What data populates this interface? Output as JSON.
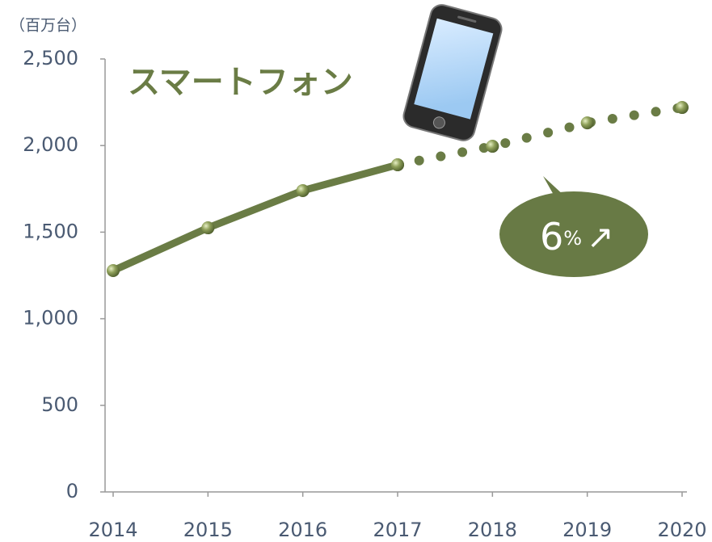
{
  "chart_data": {
    "type": "line",
    "unit_label": "（百万台）",
    "annotation": "スマートフォン",
    "growth": {
      "value": 6,
      "unit": "%",
      "arrow": "↗"
    },
    "categories": [
      "2014",
      "2015",
      "2016",
      "2017",
      "2018",
      "2019",
      "2020"
    ],
    "series": [
      {
        "color": "#6a7c45",
        "style": "solid",
        "values": [
          1278,
          1525,
          1740,
          1889,
          null,
          null,
          null
        ]
      },
      {
        "color": "#6a7c45",
        "style": "dotted",
        "values": [
          null,
          null,
          null,
          1889,
          1996,
          2131,
          2220
        ]
      }
    ],
    "ylim": [
      0,
      2500
    ],
    "yticks": [
      0,
      500,
      {
        "value": 1000,
        "label": "1,000"
      },
      {
        "value": 1500,
        "label": "1,500"
      },
      {
        "value": 2000,
        "label": "2,000"
      },
      {
        "value": 2500,
        "label": "2,500"
      }
    ],
    "grid": false
  }
}
